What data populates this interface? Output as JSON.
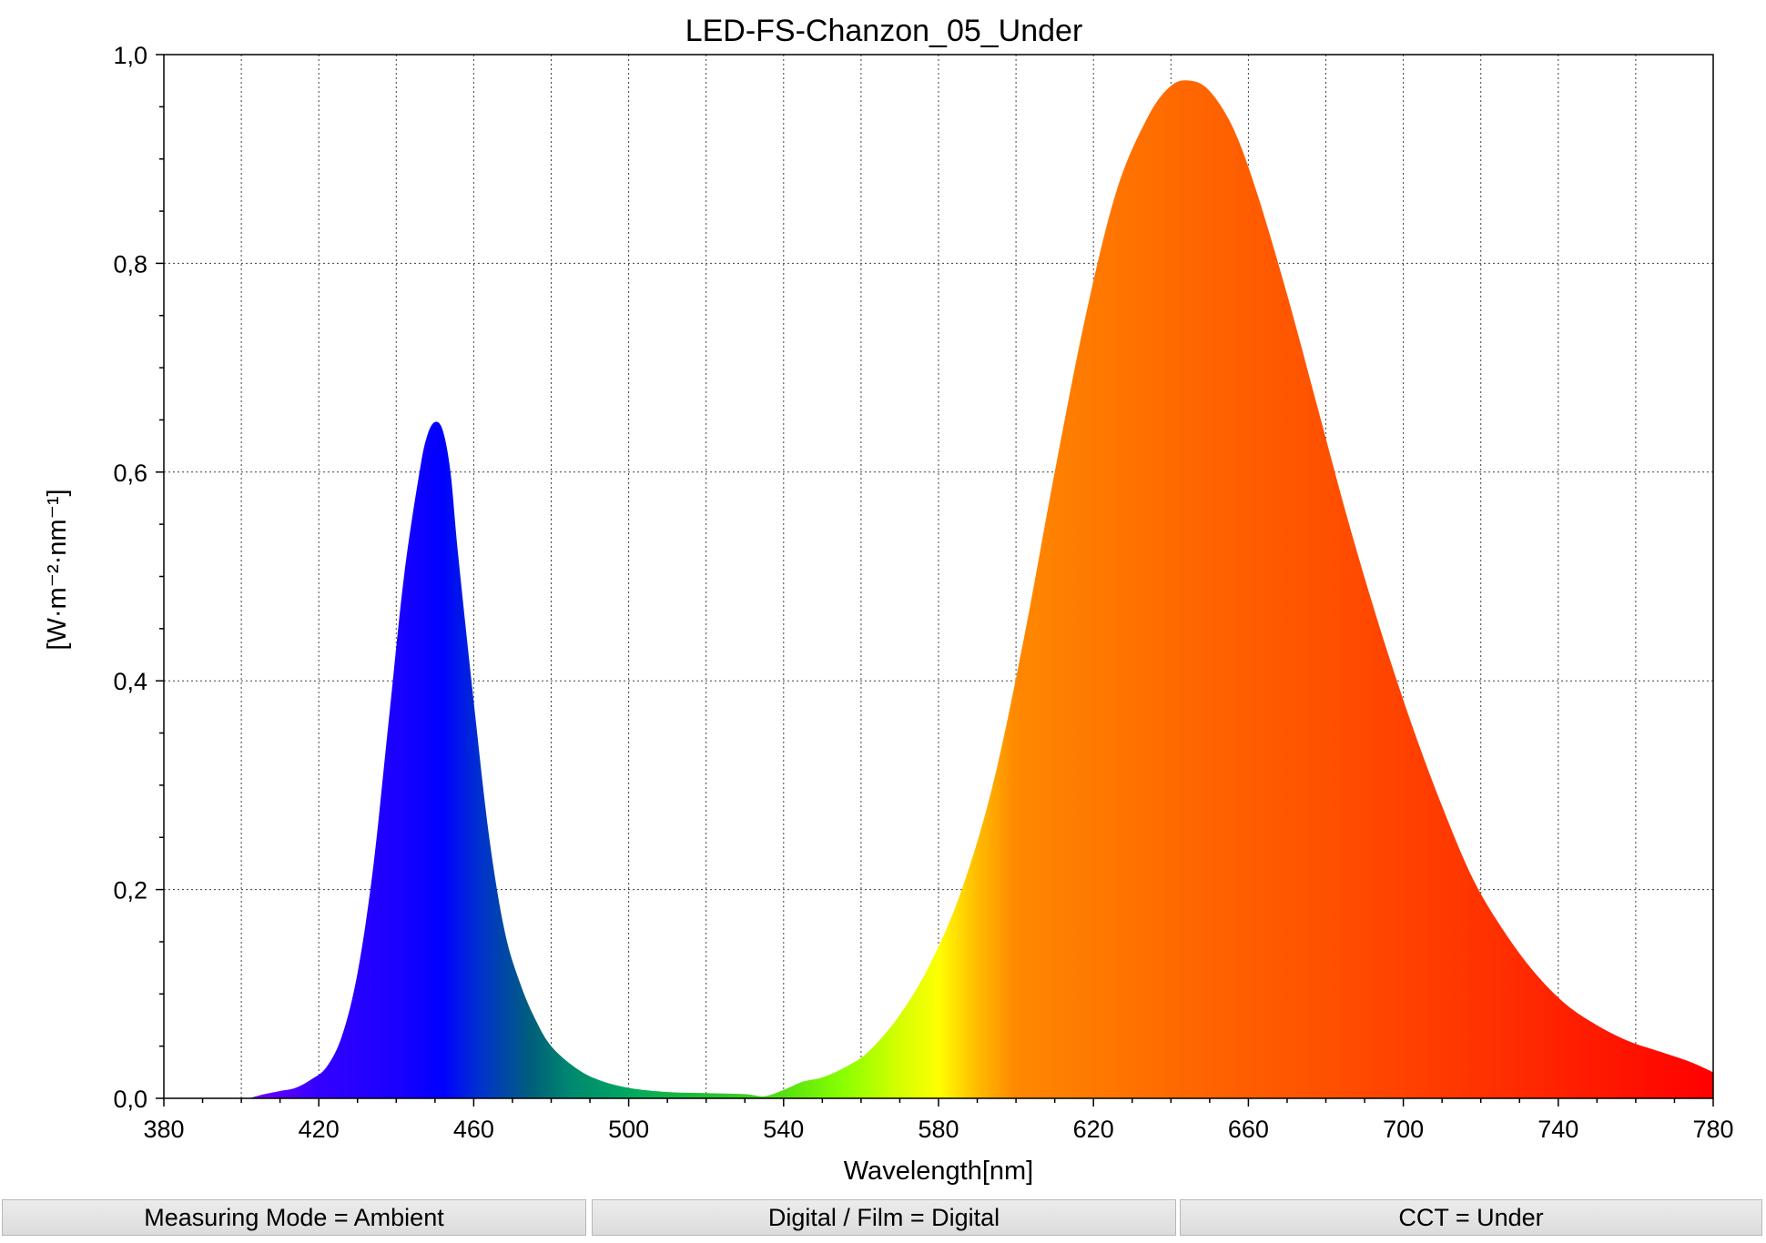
{
  "chart_data": {
    "type": "area",
    "title": "LED-FS-Chanzon_05_Under",
    "xlabel": "Wavelength[nm]",
    "ylabel": "[W·m⁻²·nm⁻¹]",
    "xlim": [
      380,
      780
    ],
    "ylim": [
      0,
      1.0
    ],
    "x_ticks": [
      380,
      420,
      460,
      500,
      540,
      580,
      620,
      660,
      700,
      740,
      780
    ],
    "x_tick_labels": [
      "380",
      "420",
      "460",
      "500",
      "540",
      "580",
      "620",
      "660",
      "700",
      "740",
      "780"
    ],
    "y_ticks": [
      0,
      0.2,
      0.4,
      0.6,
      0.8,
      1.0
    ],
    "y_tick_labels": [
      "0,0",
      "0,2",
      "0,4",
      "0,6",
      "0,8",
      "1,0"
    ],
    "grid": true,
    "fill": "spectral",
    "series": [
      {
        "x": [
          402,
          406,
          410,
          414,
          418,
          422,
          426,
          430,
          434,
          438,
          442,
          446,
          448,
          450,
          452,
          454,
          456,
          460,
          464,
          468,
          472,
          476,
          480,
          486,
          492,
          500,
          510,
          520,
          530,
          535,
          540,
          545,
          550,
          556,
          562,
          570,
          578,
          586,
          594,
          602,
          610,
          618,
          626,
          634,
          640,
          645,
          650,
          656,
          662,
          670,
          678,
          686,
          694,
          702,
          710,
          718,
          726,
          734,
          742,
          750,
          758,
          766,
          774,
          780
        ],
        "y": [
          0.0,
          0.004,
          0.007,
          0.01,
          0.018,
          0.03,
          0.06,
          0.12,
          0.22,
          0.36,
          0.5,
          0.6,
          0.635,
          0.648,
          0.64,
          0.6,
          0.52,
          0.38,
          0.25,
          0.16,
          0.11,
          0.075,
          0.05,
          0.03,
          0.018,
          0.01,
          0.006,
          0.005,
          0.004,
          0.002,
          0.008,
          0.016,
          0.02,
          0.03,
          0.045,
          0.08,
          0.13,
          0.2,
          0.3,
          0.44,
          0.6,
          0.75,
          0.87,
          0.94,
          0.97,
          0.975,
          0.965,
          0.93,
          0.87,
          0.77,
          0.66,
          0.55,
          0.45,
          0.36,
          0.28,
          0.21,
          0.16,
          0.12,
          0.09,
          0.07,
          0.055,
          0.045,
          0.035,
          0.025
        ]
      }
    ]
  },
  "status_bar": {
    "measuring_mode": "Measuring Mode = Ambient",
    "digital_film": "Digital / Film = Digital",
    "cct": "CCT = Under"
  }
}
